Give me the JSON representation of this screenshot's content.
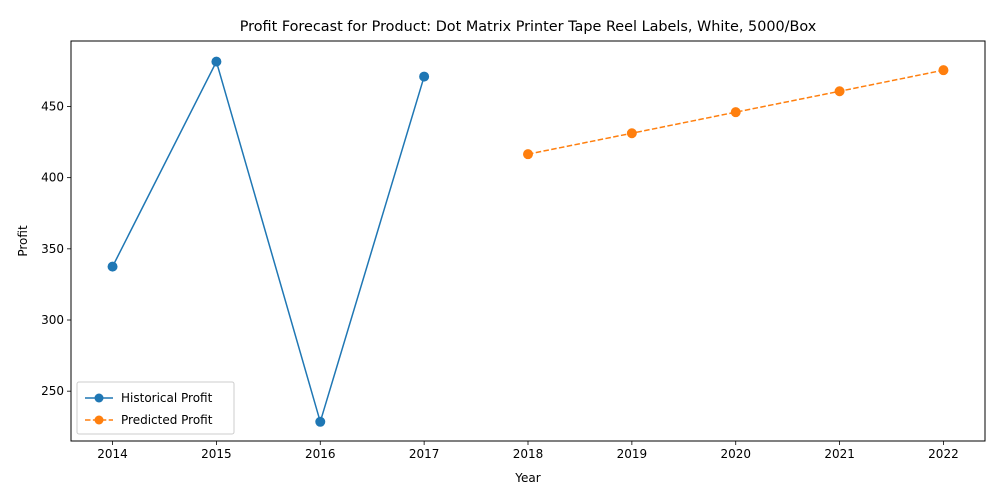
{
  "chart_data": {
    "type": "line",
    "title": "Profit Forecast for Product: Dot Matrix Printer Tape Reel Labels, White, 5000/Box",
    "xlabel": "Year",
    "ylabel": "Profit",
    "xlim": [
      2013.6,
      2022.4
    ],
    "ylim": [
      215,
      496
    ],
    "xticks": [
      2014,
      2015,
      2016,
      2017,
      2018,
      2019,
      2020,
      2021,
      2022
    ],
    "yticks": [
      250,
      300,
      350,
      400,
      450
    ],
    "grid": false,
    "legend_position": "lower-left",
    "series": [
      {
        "name": "Historical Profit",
        "color": "#1f77b4",
        "linestyle": "solid",
        "marker": "circle",
        "x": [
          2014,
          2015,
          2016,
          2017
        ],
        "values": [
          337.5,
          481.5,
          228.5,
          471.0
        ]
      },
      {
        "name": "Predicted Profit",
        "color": "#ff7f0e",
        "linestyle": "dashed",
        "marker": "circle",
        "x": [
          2018,
          2019,
          2020,
          2021,
          2022
        ],
        "values": [
          416.5,
          431.2,
          446.0,
          460.7,
          475.5
        ]
      }
    ]
  }
}
